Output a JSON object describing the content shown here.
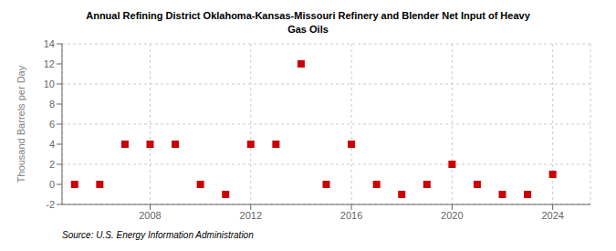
{
  "chart_data": {
    "type": "scatter",
    "title": "Annual Refining District Oklahoma-Kansas-Missouri Refinery and Blender Net Input of Heavy\nGas Oils",
    "ylabel": "Thousand Barrels per Day",
    "source": "Source: U.S. Energy Information Administration",
    "x": [
      2005,
      2006,
      2007,
      2008,
      2009,
      2010,
      2011,
      2012,
      2013,
      2014,
      2015,
      2016,
      2017,
      2018,
      2019,
      2020,
      2021,
      2022,
      2023,
      2024
    ],
    "values": [
      0,
      0,
      4,
      4,
      4,
      0,
      -1,
      4,
      4,
      12,
      0,
      4,
      0,
      -1,
      0,
      2,
      0,
      -1,
      -1,
      1
    ],
    "color": "#cc0000",
    "marker": "square",
    "xlim": [
      2004.5,
      2025.5
    ],
    "ylim": [
      -2,
      14
    ],
    "xticks": [
      2008,
      2012,
      2016,
      2020,
      2024
    ],
    "yticks": [
      -2,
      0,
      2,
      4,
      6,
      8,
      10,
      12,
      14
    ],
    "grid": true
  }
}
